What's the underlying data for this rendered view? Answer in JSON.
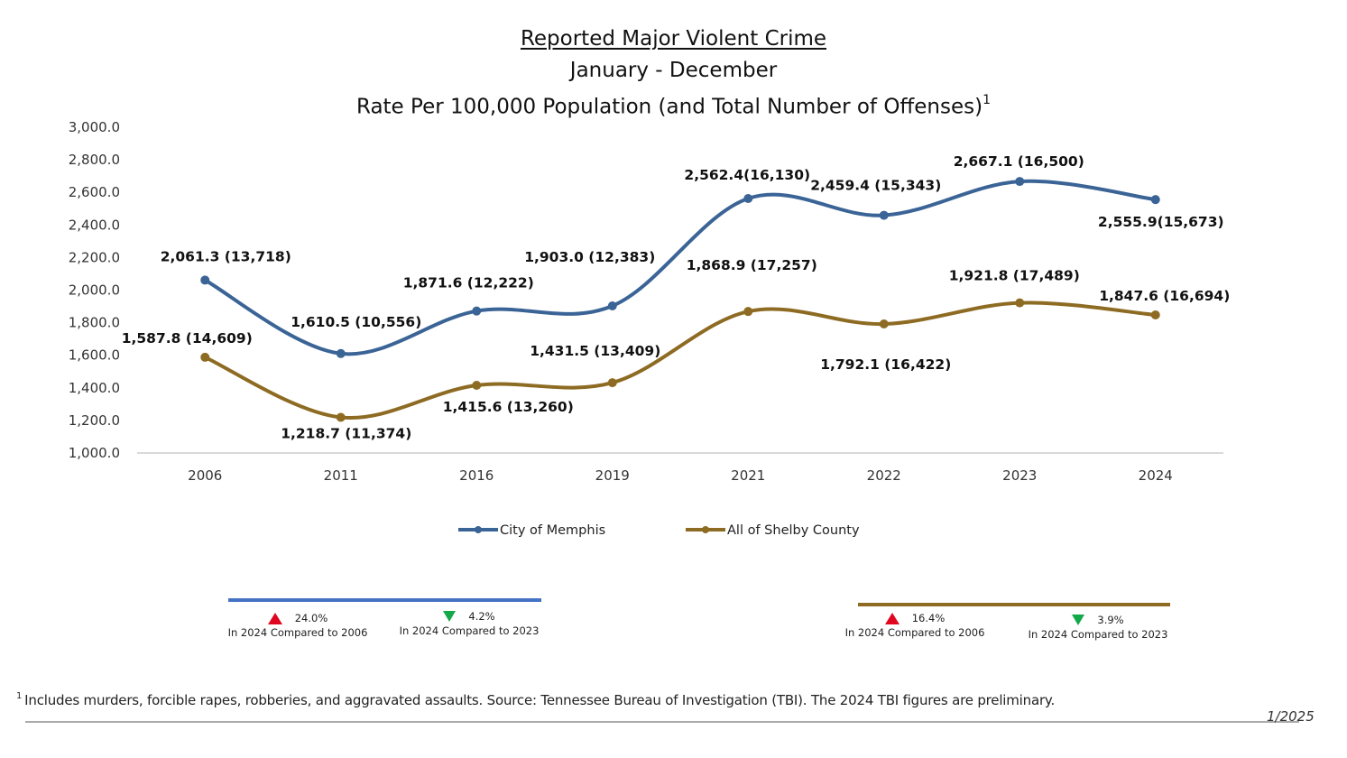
{
  "chart_data": {
    "type": "line",
    "title": "Reported Major Violent Crime",
    "subtitle": "January - December",
    "subtitle2": "Rate Per 100,000 Population (and Total Number of Offenses)",
    "subtitle2_footnote_mark": "1",
    "xlabel": "",
    "ylabel": "",
    "x": [
      "2006",
      "2011",
      "2016",
      "2019",
      "2021",
      "2022",
      "2023",
      "2024"
    ],
    "ylim": [
      1000,
      3000
    ],
    "yticks": [
      1000,
      1200,
      1400,
      1600,
      1800,
      2000,
      2200,
      2400,
      2600,
      2800,
      3000
    ],
    "ytick_labels": [
      "1,000.0",
      "1,200.0",
      "1,400.0",
      "1,600.0",
      "1,800.0",
      "2,000.0",
      "2,200.0",
      "2,400.0",
      "2,600.0",
      "2,800.0",
      "3,000.0"
    ],
    "grid": false,
    "smooth": true,
    "legend_position": "bottom",
    "series": [
      {
        "name": "City of Memphis",
        "color": "#3b6496",
        "values": [
          2061.3,
          1610.5,
          1871.6,
          1903.0,
          2562.4,
          2459.4,
          2667.1,
          2555.9
        ],
        "offenses": [
          13718,
          10556,
          12222,
          12383,
          16130,
          15343,
          16500,
          15673
        ],
        "labels": [
          "2,061.3 (13,718)",
          "1,610.5 (10,556)",
          "1,871.6 (12,222)",
          "1,903.0 (12,383)",
          "2,562.4(16,130)",
          "2,459.4 (15,343)",
          "2,667.1 (16,500)",
          "2,555.9(15,673)"
        ]
      },
      {
        "name": "All of Shelby County",
        "color": "#8e6b23",
        "values": [
          1587.8,
          1218.7,
          1415.6,
          1431.5,
          1868.9,
          1792.1,
          1921.8,
          1847.6
        ],
        "offenses": [
          14609,
          11374,
          13260,
          13409,
          17257,
          16422,
          17489,
          16694
        ],
        "labels": [
          "1,587.8 (14,609)",
          "1,218.7 (11,374)",
          "1,415.6 (13,260)",
          "1,431.5 (13,409)",
          "1,868.9 (17,257)",
          "1,792.1 (16,422)",
          "1,921.8 (17,489)",
          "1,847.6 (16,694)"
        ]
      }
    ]
  },
  "summaries": [
    {
      "series": "City of Memphis",
      "color": "#4472c4",
      "stats": [
        {
          "direction": "up",
          "percent": "24.0%",
          "caption": "In 2024 Compared to 2006"
        },
        {
          "direction": "down",
          "percent": "4.2%",
          "caption": "In 2024 Compared to 2023"
        }
      ]
    },
    {
      "series": "All of Shelby County",
      "color": "#8e6b23",
      "stats": [
        {
          "direction": "up",
          "percent": "16.4%",
          "caption": "In 2024 Compared to 2006"
        },
        {
          "direction": "down",
          "percent": "3.9%",
          "caption": "In 2024 Compared to 2023"
        }
      ]
    }
  ],
  "colors": {
    "increase": "#e0061f",
    "decrease": "#13a84a"
  },
  "footnote": {
    "mark": "1",
    "text": "Includes murders, forcible rapes, robberies, and aggravated assaults. Source:  Tennessee Bureau of Investigation (TBI). The 2024 TBI figures are preliminary."
  },
  "date": "1/2025"
}
